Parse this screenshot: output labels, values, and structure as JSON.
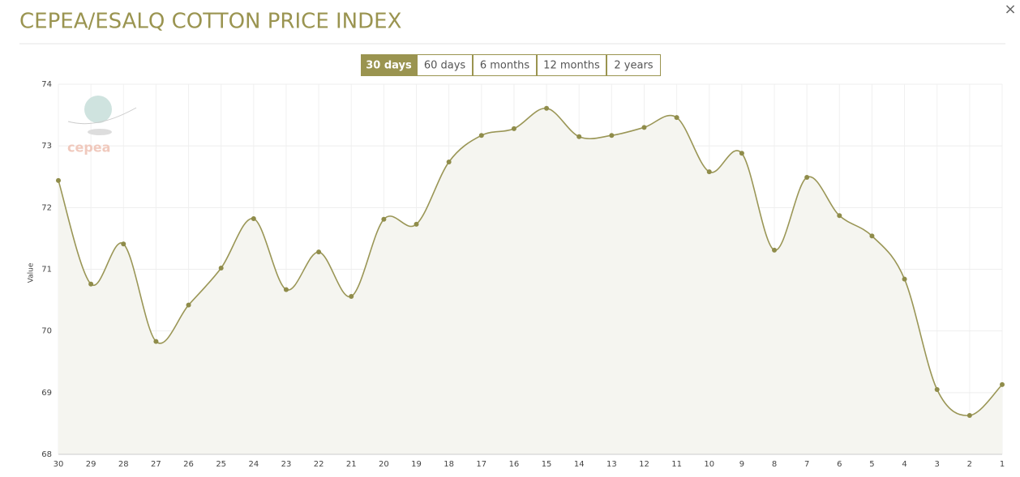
{
  "close": "×",
  "range_buttons": [
    {
      "label": "30 days",
      "active": true
    },
    {
      "label": "60 days",
      "active": false
    },
    {
      "label": "6 months",
      "active": false
    },
    {
      "label": "12 months",
      "active": false
    },
    {
      "label": "2 years",
      "active": false
    }
  ],
  "chart_data": {
    "type": "area",
    "title": "CEPEA/ESALQ COTTON PRICE INDEX",
    "logo": "cepea",
    "y_label": "Value",
    "categories": [
      "30",
      "29",
      "28",
      "27",
      "26",
      "25",
      "24",
      "23",
      "22",
      "21",
      "20",
      "19",
      "18",
      "17",
      "16",
      "15",
      "14",
      "13",
      "12",
      "11",
      "10",
      "9",
      "8",
      "7",
      "6",
      "5",
      "4",
      "3",
      "2",
      "1"
    ],
    "values": [
      72.44,
      70.76,
      71.41,
      69.83,
      70.42,
      71.02,
      71.82,
      70.67,
      71.28,
      70.56,
      71.81,
      71.73,
      72.74,
      73.17,
      73.28,
      73.61,
      73.15,
      73.17,
      73.3,
      73.46,
      72.58,
      72.88,
      71.31,
      72.49,
      71.87,
      71.54,
      70.84,
      69.05,
      68.63,
      69.13
    ],
    "color": "#9a9656",
    "ylim": [
      68,
      74
    ],
    "yticks": [
      68,
      69,
      70,
      71,
      72,
      73,
      74
    ],
    "grid": true
  }
}
